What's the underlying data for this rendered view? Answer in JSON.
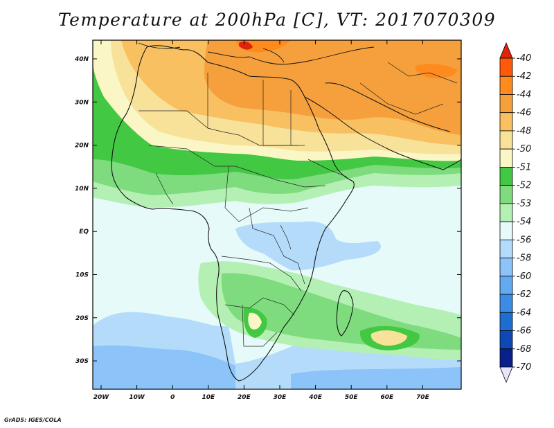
{
  "title": "Temperature at 200hPa [C], VT: 2017070309",
  "credit": "GrADS: IGES/COLA",
  "lat_labels": [
    "40N",
    "30N",
    "20N",
    "10N",
    "EQ",
    "10S",
    "20S",
    "30S"
  ],
  "lon_labels": [
    "20W",
    "10W",
    "0",
    "10E",
    "20E",
    "30E",
    "40E",
    "50E",
    "60E",
    "70E"
  ],
  "colorbar": {
    "labels": [
      "-40",
      "-42",
      "-44",
      "-46",
      "-48",
      "-50",
      "-51",
      "-52",
      "-53",
      "-54",
      "-56",
      "-58",
      "-60",
      "-62",
      "-64",
      "-66",
      "-68",
      "-70"
    ],
    "colors": [
      "#e0230a",
      "#ff5a0a",
      "#ff8a1e",
      "#f5a03c",
      "#f8c060",
      "#f8e29a",
      "#fbf6c6",
      "#43c843",
      "#7edc7e",
      "#b4f0b4",
      "#e6fafa",
      "#b4dcfa",
      "#8cc3f8",
      "#64aaf0",
      "#3c8ce6",
      "#1e6ed2",
      "#0f48b4",
      "#0a1e8c",
      "#e6e6f8"
    ]
  }
}
